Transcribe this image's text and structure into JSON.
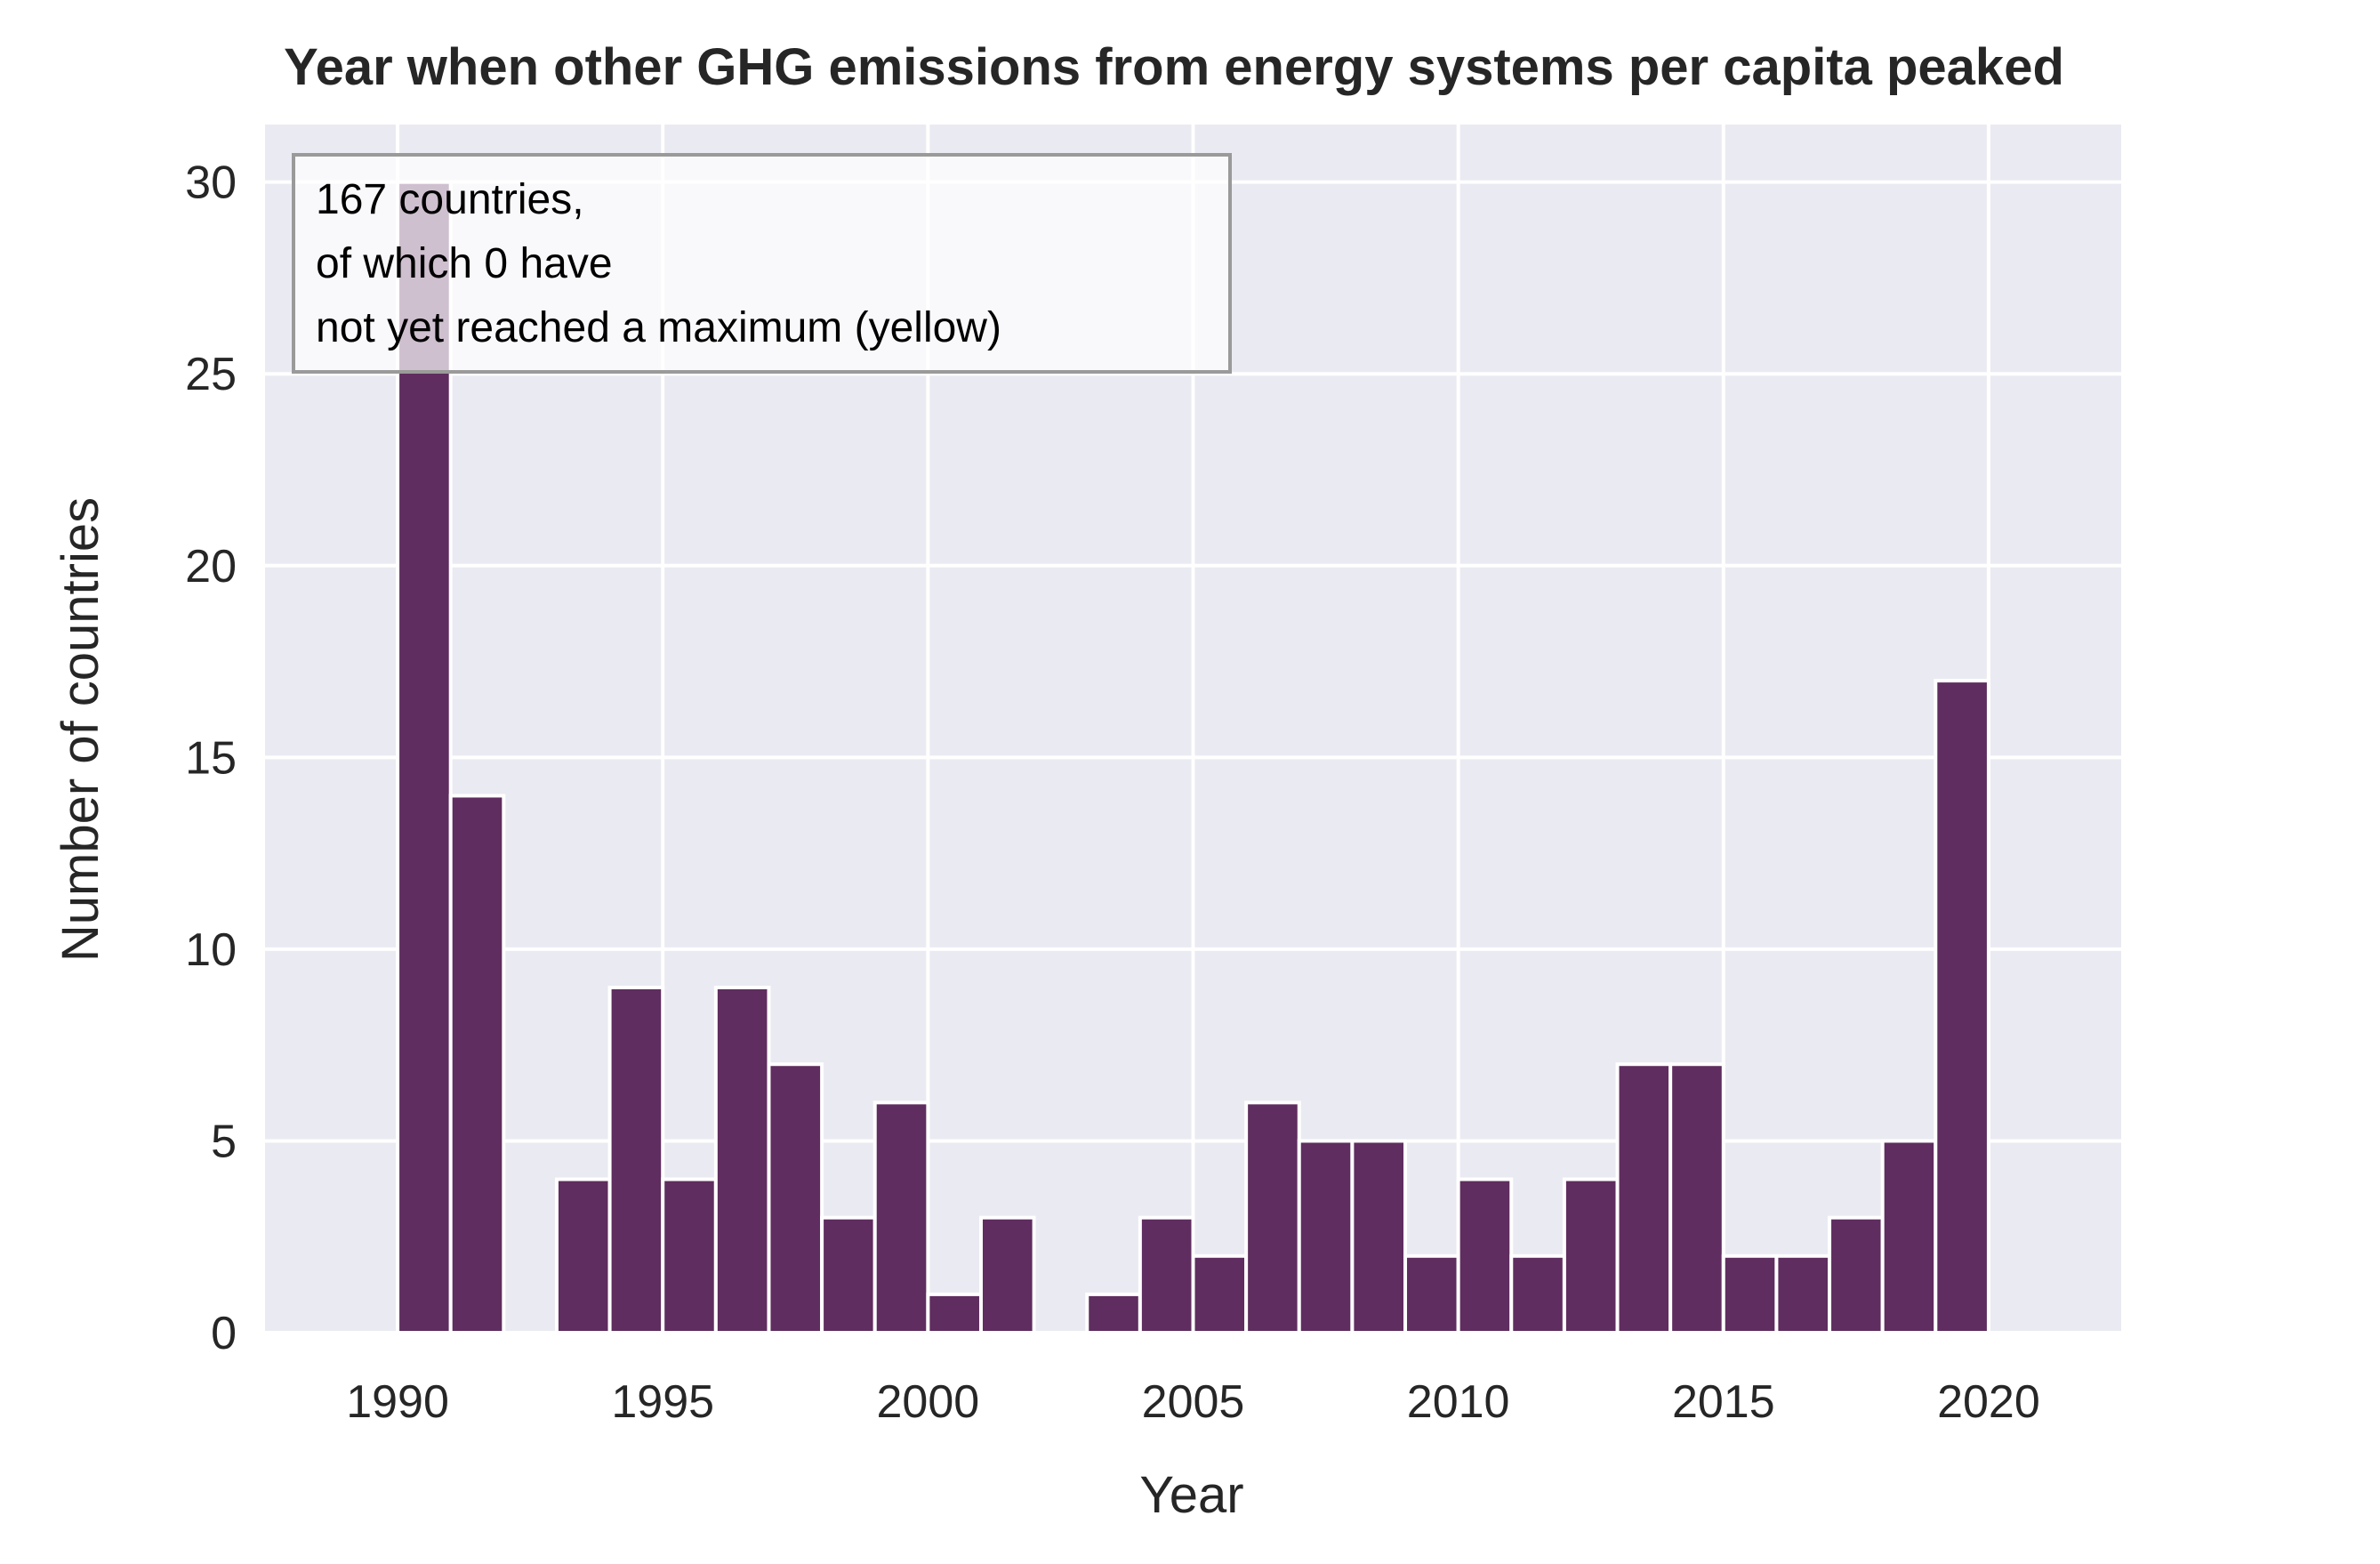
{
  "colors": {
    "plot_background": "#eaeaf2",
    "grid": "#ffffff",
    "bar_fill": "#5f2d5f",
    "bar_edge": "#ffffff",
    "text": "#262626"
  },
  "chart_data": {
    "type": "bar",
    "title": "Year when other GHG emissions from energy systems per capita peaked",
    "xlabel": "Year",
    "ylabel": "Number of countries",
    "xlim": [
      1987.5,
      2022.5
    ],
    "ylim": [
      0,
      31.5
    ],
    "xticks": [
      1990,
      1995,
      2000,
      2005,
      2010,
      2015,
      2020
    ],
    "yticks": [
      0,
      5,
      10,
      15,
      20,
      25,
      30
    ],
    "grid": true,
    "bin_width": 1,
    "bins": [
      {
        "year": 1990,
        "count": 30
      },
      {
        "year": 1991,
        "count": 14
      },
      {
        "year": 1992,
        "count": 0
      },
      {
        "year": 1993,
        "count": 4
      },
      {
        "year": 1994,
        "count": 9
      },
      {
        "year": 1995,
        "count": 4
      },
      {
        "year": 1996,
        "count": 9
      },
      {
        "year": 1997,
        "count": 7
      },
      {
        "year": 1998,
        "count": 3
      },
      {
        "year": 1999,
        "count": 6
      },
      {
        "year": 2000,
        "count": 1
      },
      {
        "year": 2001,
        "count": 3
      },
      {
        "year": 2002,
        "count": 0
      },
      {
        "year": 2003,
        "count": 1
      },
      {
        "year": 2004,
        "count": 3
      },
      {
        "year": 2005,
        "count": 2
      },
      {
        "year": 2006,
        "count": 6
      },
      {
        "year": 2007,
        "count": 5
      },
      {
        "year": 2008,
        "count": 5
      },
      {
        "year": 2009,
        "count": 2
      },
      {
        "year": 2010,
        "count": 4
      },
      {
        "year": 2011,
        "count": 2
      },
      {
        "year": 2012,
        "count": 4
      },
      {
        "year": 2013,
        "count": 7
      },
      {
        "year": 2014,
        "count": 7
      },
      {
        "year": 2015,
        "count": 2
      },
      {
        "year": 2016,
        "count": 2
      },
      {
        "year": 2017,
        "count": 3
      },
      {
        "year": 2018,
        "count": 5
      },
      {
        "year": 2019,
        "count": 17
      }
    ],
    "annotation": {
      "lines": [
        "167 countries,",
        "of which 0 have",
        "not yet reached a maximum (yellow)"
      ],
      "placement": "top-left"
    }
  }
}
